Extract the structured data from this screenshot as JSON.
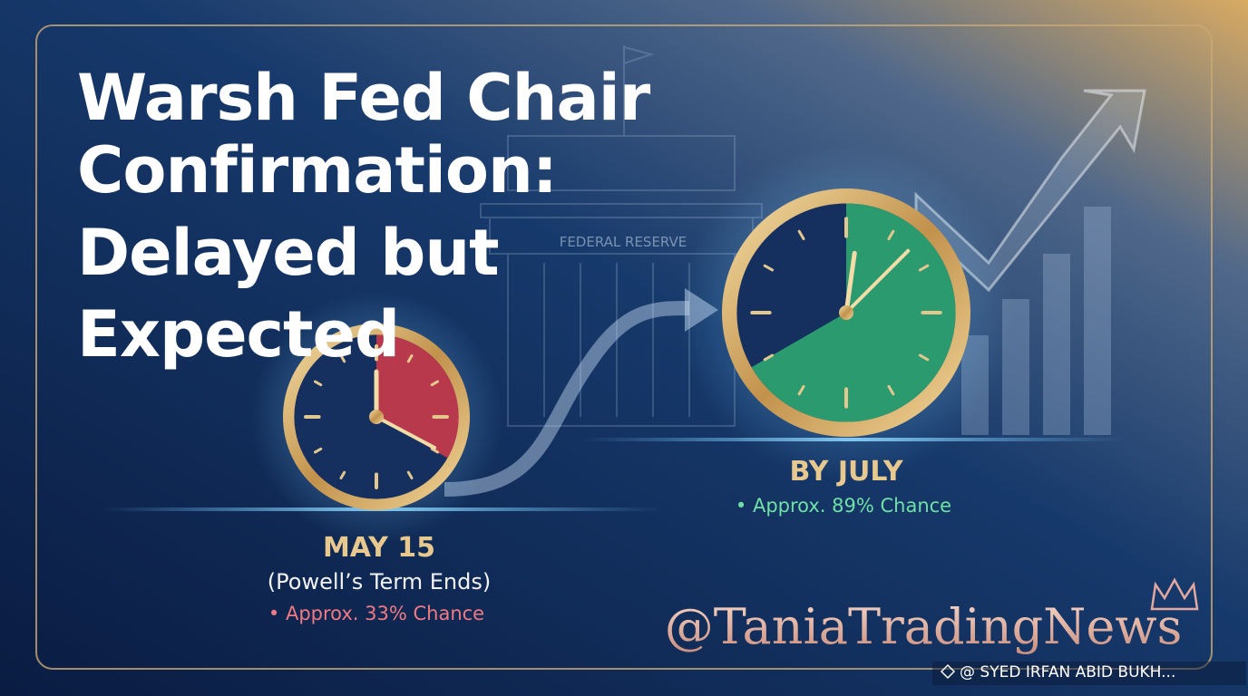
{
  "title": {
    "lines": [
      "Warsh Fed Chair",
      "Confirmation:",
      "Delayed but",
      "Expected"
    ]
  },
  "building_label": "FEDERAL RESERVE",
  "milestones": [
    {
      "date": "MAY 15",
      "note": "(Powell’s Term Ends)",
      "chance": "• Approx. 33% Chance"
    },
    {
      "date": "BY JULY",
      "chance": "• Approx. 89% Chance"
    }
  ],
  "watermark": "@TaniaTradingNews",
  "credit": "@ SYED IRFAN ABID BUKH..."
}
